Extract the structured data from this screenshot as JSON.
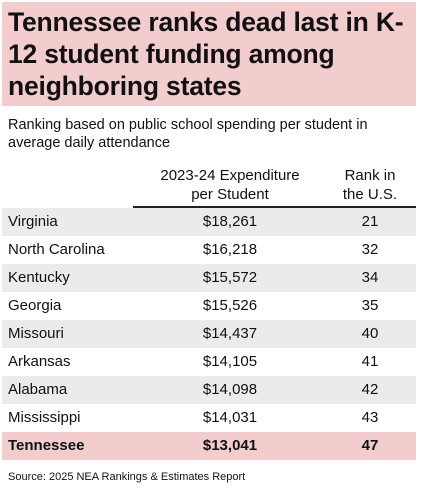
{
  "title": "Tennessee ranks dead last in K-12 student funding among neighboring states",
  "subtitle": "Ranking based on public school spending per student in average daily attendance",
  "table": {
    "header": {
      "expenditure": [
        "2023-24 Expenditure",
        "per Student"
      ],
      "rank": [
        "Rank in",
        "the U.S."
      ]
    },
    "rows": [
      [
        "Virginia",
        "$18,261",
        21
      ],
      [
        "North Carolina",
        "$16,218",
        32
      ],
      [
        "Kentucky",
        "$15,572",
        34
      ],
      [
        "Georgia",
        "$15,526",
        35
      ],
      [
        "Missouri",
        "$14,437",
        40
      ],
      [
        "Arkansas",
        "$14,105",
        41
      ],
      [
        "Alabama",
        "$14,098",
        42
      ],
      [
        "Mississippi",
        "$14,031",
        43
      ],
      [
        "Tennessee",
        "$13,041",
        47
      ]
    ]
  },
  "source": "Source: 2025 NEA Rankings & Estimates Report"
}
